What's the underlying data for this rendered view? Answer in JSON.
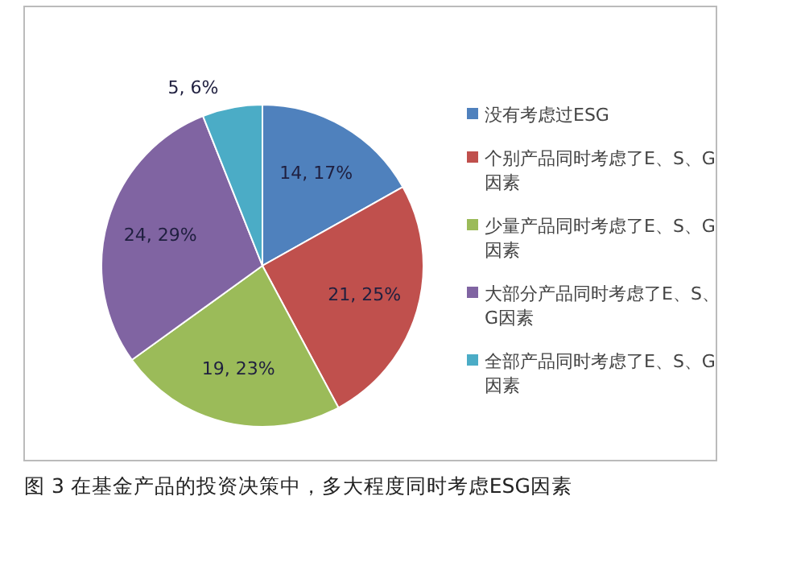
{
  "chart_data": {
    "type": "pie",
    "categories": [
      "没有考虑过ESG",
      "个别产品同时考虑了E、S、G因素",
      "少量产品同时考虑了E、S、G因素",
      "大部分产品同时考虑了E、S、G因素",
      "全部产品同时考虑了E、S、G因素"
    ],
    "values": [
      14,
      21,
      19,
      24,
      5
    ],
    "value_labels": [
      "14, 17%",
      "21, 25%",
      "19, 23%",
      "24, 29%",
      "5, 6%"
    ],
    "colors": [
      "#4f81bd",
      "#c0504d",
      "#9bbb59",
      "#8064a2",
      "#4bacc6"
    ],
    "legend": "right",
    "annotations": [
      "图 3 在基金产品的投资决策中，多大程度同时考虑ESG因素"
    ]
  }
}
